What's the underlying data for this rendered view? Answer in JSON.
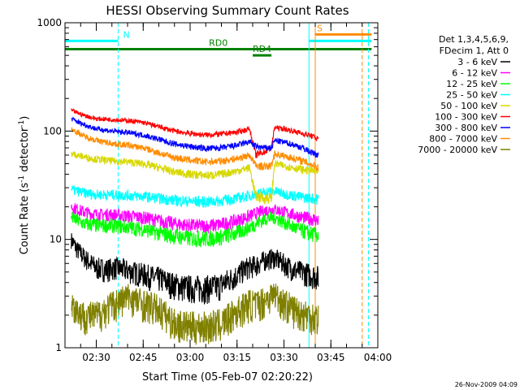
{
  "chart_data": {
    "type": "line",
    "title": "HESSI Observing Summary Count Rates",
    "xlabel": "Start Time (05-Feb-07 02:20:22)",
    "ylabel_main": "Count Rate (s",
    "ylabel_sup1": "-1",
    "ylabel_mid": " detector",
    "ylabel_sup2": "-1",
    "ylabel_end": ")",
    "x_range_minutes": [
      "02:20",
      "04:00"
    ],
    "ylim": [
      1,
      1000
    ],
    "yscale": "log",
    "x_ticks": [
      "02:30",
      "02:45",
      "03:00",
      "03:15",
      "03:30",
      "03:45",
      "04:00"
    ],
    "y_ticks": [
      "1",
      "10",
      "100",
      "1000"
    ],
    "legend_header": [
      "Det 1,3,4,5,6,9,",
      "FDecim 1, Att 0"
    ],
    "legend_position": "right",
    "timestamp": "26-Nov-2009 04:09",
    "gap_start": "03:21",
    "gap_end": "03:27",
    "end_time": "03:41",
    "series": [
      {
        "name": "3 - 6 keV",
        "color": "#000000",
        "points": [
          [
            "02:22",
            10
          ],
          [
            "02:24",
            8
          ],
          [
            "02:27",
            6.5
          ],
          [
            "02:30",
            5.5
          ],
          [
            "02:33",
            5.3
          ],
          [
            "02:36",
            5.5
          ],
          [
            "02:39",
            5.3
          ],
          [
            "02:42",
            5
          ],
          [
            "02:45",
            4.8
          ],
          [
            "02:48",
            4.5
          ],
          [
            "02:51",
            4.3
          ],
          [
            "02:54",
            3.9
          ],
          [
            "02:57",
            3.7
          ],
          [
            "03:00",
            3.6
          ],
          [
            "03:03",
            3.6
          ],
          [
            "03:06",
            3.6
          ],
          [
            "03:09",
            3.7
          ],
          [
            "03:12",
            4.2
          ],
          [
            "03:15",
            4.7
          ],
          [
            "03:18",
            5.5
          ],
          [
            "03:21",
            5.8
          ],
          [
            "03:24",
            6.5
          ],
          [
            "03:27",
            6.8
          ],
          [
            "03:30",
            6
          ],
          [
            "03:33",
            5.3
          ],
          [
            "03:36",
            5
          ],
          [
            "03:39",
            4.7
          ],
          [
            "03:41",
            4.5
          ]
        ]
      },
      {
        "name": "6 - 12 keV",
        "color": "#ff00ff",
        "points": [
          [
            "02:22",
            20
          ],
          [
            "02:26",
            18
          ],
          [
            "02:30",
            17
          ],
          [
            "02:35",
            17
          ],
          [
            "02:40",
            16.5
          ],
          [
            "02:45",
            16
          ],
          [
            "02:50",
            15
          ],
          [
            "02:55",
            14
          ],
          [
            "03:00",
            13.5
          ],
          [
            "03:05",
            13.3
          ],
          [
            "03:10",
            13.8
          ],
          [
            "03:15",
            15
          ],
          [
            "03:19",
            16.5
          ],
          [
            "03:21",
            17.5
          ],
          [
            "03:24",
            18.5
          ],
          [
            "03:27",
            19
          ],
          [
            "03:30",
            18
          ],
          [
            "03:33",
            17
          ],
          [
            "03:36",
            16
          ],
          [
            "03:39",
            15.5
          ],
          [
            "03:41",
            15
          ]
        ]
      },
      {
        "name": "12 - 25 keV",
        "color": "#00ff00",
        "points": [
          [
            "02:22",
            16
          ],
          [
            "02:26",
            14
          ],
          [
            "02:30",
            13.5
          ],
          [
            "02:35",
            13.5
          ],
          [
            "02:40",
            13
          ],
          [
            "02:45",
            12.5
          ],
          [
            "02:50",
            11.5
          ],
          [
            "02:55",
            10.8
          ],
          [
            "03:00",
            10.3
          ],
          [
            "03:05",
            10.2
          ],
          [
            "03:10",
            10.6
          ],
          [
            "03:15",
            11.5
          ],
          [
            "03:19",
            13
          ],
          [
            "03:21",
            14
          ],
          [
            "03:24",
            15.5
          ],
          [
            "03:27",
            16
          ],
          [
            "03:30",
            14.5
          ],
          [
            "03:33",
            13
          ],
          [
            "03:36",
            12
          ],
          [
            "03:39",
            11.3
          ],
          [
            "03:41",
            11
          ]
        ]
      },
      {
        "name": "25 - 50 keV",
        "color": "#00ffff",
        "points": [
          [
            "02:22",
            29
          ],
          [
            "02:26",
            27
          ],
          [
            "02:30",
            26
          ],
          [
            "02:35",
            26
          ],
          [
            "02:40",
            25.5
          ],
          [
            "02:45",
            25
          ],
          [
            "02:50",
            24
          ],
          [
            "02:55",
            23
          ],
          [
            "03:00",
            22.5
          ],
          [
            "03:05",
            22.3
          ],
          [
            "03:10",
            22.8
          ],
          [
            "03:15",
            24
          ],
          [
            "03:19",
            25.5
          ],
          [
            "03:21",
            26
          ],
          [
            "03:24",
            27.5
          ],
          [
            "03:27",
            28
          ],
          [
            "03:30",
            26.5
          ],
          [
            "03:33",
            25.5
          ],
          [
            "03:36",
            24.5
          ],
          [
            "03:39",
            24
          ],
          [
            "03:41",
            23.5
          ]
        ]
      },
      {
        "name": "50 - 100 keV",
        "color": "#d8d800",
        "points": [
          [
            "02:22",
            62
          ],
          [
            "02:26",
            58
          ],
          [
            "02:30",
            55
          ],
          [
            "02:35",
            53
          ],
          [
            "02:40",
            52
          ],
          [
            "02:45",
            50
          ],
          [
            "02:50",
            46
          ],
          [
            "02:55",
            42
          ],
          [
            "03:00",
            40
          ],
          [
            "03:05",
            39
          ],
          [
            "03:10",
            40
          ],
          [
            "03:15",
            43
          ],
          [
            "03:19",
            46
          ],
          [
            "03:21",
            25
          ],
          [
            "03:24",
            24
          ],
          [
            "03:26",
            24
          ],
          [
            "03:27",
            50
          ],
          [
            "03:30",
            48
          ],
          [
            "03:33",
            46
          ],
          [
            "03:36",
            44
          ],
          [
            "03:39",
            43
          ],
          [
            "03:41",
            42
          ]
        ]
      },
      {
        "name": "100 - 300 keV",
        "color": "#ff0000",
        "points": [
          [
            "02:22",
            155
          ],
          [
            "02:26",
            140
          ],
          [
            "02:30",
            130
          ],
          [
            "02:35",
            128
          ],
          [
            "02:40",
            125
          ],
          [
            "02:45",
            120
          ],
          [
            "02:50",
            110
          ],
          [
            "02:55",
            100
          ],
          [
            "03:00",
            95
          ],
          [
            "03:05",
            92
          ],
          [
            "03:10",
            94
          ],
          [
            "03:15",
            98
          ],
          [
            "03:19",
            105
          ],
          [
            "03:21",
            60
          ],
          [
            "03:24",
            65
          ],
          [
            "03:26",
            70
          ],
          [
            "03:27",
            108
          ],
          [
            "03:30",
            105
          ],
          [
            "03:33",
            100
          ],
          [
            "03:36",
            95
          ],
          [
            "03:39",
            90
          ],
          [
            "03:41",
            85
          ]
        ]
      },
      {
        "name": "300 - 800 keV",
        "color": "#0000ff",
        "points": [
          [
            "02:22",
            130
          ],
          [
            "02:26",
            115
          ],
          [
            "02:30",
            105
          ],
          [
            "02:35",
            100
          ],
          [
            "02:40",
            97
          ],
          [
            "02:45",
            92
          ],
          [
            "02:50",
            84
          ],
          [
            "02:55",
            76
          ],
          [
            "03:00",
            72
          ],
          [
            "03:05",
            69
          ],
          [
            "03:10",
            70
          ],
          [
            "03:15",
            74
          ],
          [
            "03:19",
            80
          ],
          [
            "03:21",
            72
          ],
          [
            "03:24",
            70
          ],
          [
            "03:26",
            70
          ],
          [
            "03:27",
            82
          ],
          [
            "03:30",
            79
          ],
          [
            "03:33",
            75
          ],
          [
            "03:36",
            70
          ],
          [
            "03:39",
            63
          ],
          [
            "03:41",
            60
          ]
        ]
      },
      {
        "name": "800 - 7000 keV",
        "color": "#ff8c00",
        "points": [
          [
            "02:22",
            105
          ],
          [
            "02:26",
            90
          ],
          [
            "02:30",
            82
          ],
          [
            "02:35",
            77
          ],
          [
            "02:40",
            74
          ],
          [
            "02:45",
            70
          ],
          [
            "02:50",
            63
          ],
          [
            "02:55",
            57
          ],
          [
            "03:00",
            54
          ],
          [
            "03:05",
            52
          ],
          [
            "03:10",
            53
          ],
          [
            "03:15",
            56
          ],
          [
            "03:19",
            60
          ],
          [
            "03:21",
            48
          ],
          [
            "03:24",
            47
          ],
          [
            "03:26",
            48
          ],
          [
            "03:27",
            62
          ],
          [
            "03:30",
            59
          ],
          [
            "03:33",
            56
          ],
          [
            "03:36",
            53
          ],
          [
            "03:39",
            49
          ],
          [
            "03:41",
            46
          ]
        ]
      },
      {
        "name": "7000 - 20000 keV",
        "color": "#808000",
        "points": [
          [
            "02:22",
            2.5
          ],
          [
            "02:26",
            2
          ],
          [
            "02:30",
            2
          ],
          [
            "02:35",
            2.5
          ],
          [
            "02:40",
            3
          ],
          [
            "02:45",
            2.6
          ],
          [
            "02:50",
            2.3
          ],
          [
            "02:55",
            1.7
          ],
          [
            "03:00",
            1.6
          ],
          [
            "03:05",
            1.6
          ],
          [
            "03:10",
            1.7
          ],
          [
            "03:15",
            2.2
          ],
          [
            "03:19",
            2.6
          ],
          [
            "03:21",
            2.5
          ],
          [
            "03:24",
            2.8
          ],
          [
            "03:27",
            3.2
          ],
          [
            "03:30",
            2.6
          ],
          [
            "03:33",
            2.3
          ],
          [
            "03:36",
            2.1
          ],
          [
            "03:39",
            2
          ],
          [
            "03:41",
            1.9
          ]
        ]
      }
    ],
    "flag_bars": [
      {
        "label": "N",
        "color": "#00ffff",
        "value": 680,
        "x_start": "02:20",
        "x_end": "02:37"
      },
      {
        "label": "",
        "color": "#00ffff",
        "value": 680,
        "x_start": "03:38",
        "x_end": "03:58"
      },
      {
        "label": "RD0",
        "color": "#008000",
        "value": 570,
        "x_start": "02:20",
        "x_end": "03:58"
      },
      {
        "label": "RD4",
        "color": "#008000",
        "value": 500,
        "x_start": "03:20",
        "x_end": "03:26"
      },
      {
        "label": "S",
        "color": "#ff8c00",
        "value": 780,
        "x_start": "03:40",
        "x_end": "03:58"
      }
    ],
    "vlines": [
      {
        "x": "02:20",
        "color": "#00ffff",
        "style": "solid"
      },
      {
        "x": "02:37",
        "color": "#00ffff",
        "style": "dashed"
      },
      {
        "x": "03:38",
        "color": "#00ffff",
        "style": "solid"
      },
      {
        "x": "03:40",
        "color": "#ff8c00",
        "style": "solid"
      },
      {
        "x": "03:55",
        "color": "#ff8c00",
        "style": "dashed"
      },
      {
        "x": "03:57",
        "color": "#00ffff",
        "style": "dashed"
      }
    ]
  }
}
